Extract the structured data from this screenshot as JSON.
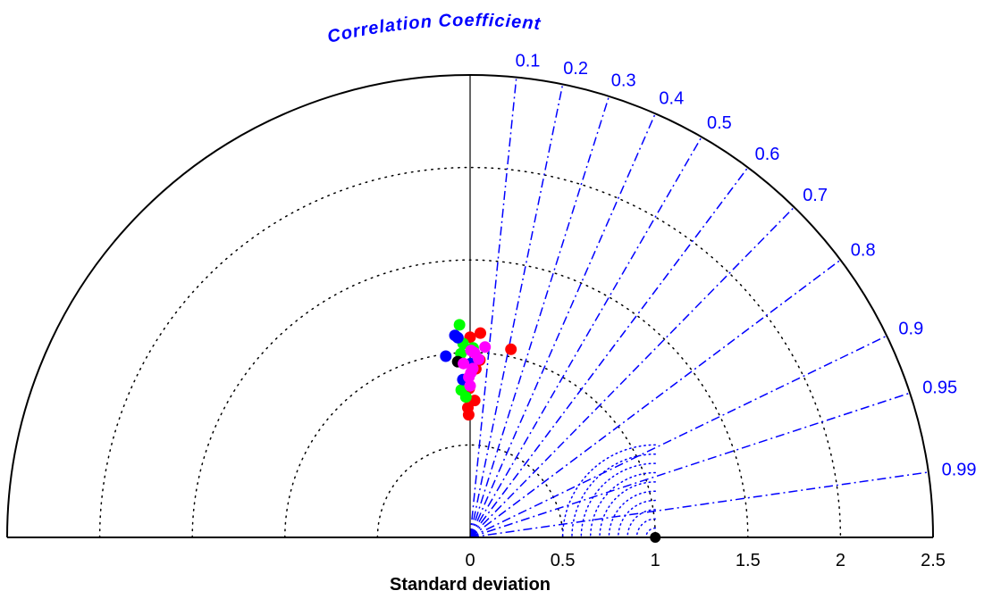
{
  "chart_data": {
    "type": "taylor-diagram",
    "title": "Correlation Coefficient",
    "xlabel": "Standard deviation",
    "std_range": [
      0,
      2.5
    ],
    "std_ticks": [
      {
        "value": 0,
        "label": "0"
      },
      {
        "value": 0.5,
        "label": "0.5"
      },
      {
        "value": 1,
        "label": "1"
      },
      {
        "value": 1.5,
        "label": "1.5"
      },
      {
        "value": 2,
        "label": "2"
      },
      {
        "value": 2.5,
        "label": "2.5"
      }
    ],
    "std_arcs": [
      0.5,
      1,
      1.5,
      2
    ],
    "correlation_ticks": [
      {
        "value": 0.1,
        "label": "0.1"
      },
      {
        "value": 0.2,
        "label": "0.2"
      },
      {
        "value": 0.3,
        "label": "0.3"
      },
      {
        "value": 0.4,
        "label": "0.4"
      },
      {
        "value": 0.5,
        "label": "0.5"
      },
      {
        "value": 0.6,
        "label": "0.6"
      },
      {
        "value": 0.7,
        "label": "0.7"
      },
      {
        "value": 0.8,
        "label": "0.8"
      },
      {
        "value": 0.9,
        "label": "0.9"
      },
      {
        "value": 0.95,
        "label": "0.95"
      },
      {
        "value": 0.99,
        "label": "0.99"
      }
    ],
    "rms_arcs": [
      0.05,
      0.1,
      0.15,
      0.2,
      0.25,
      0.3,
      0.35,
      0.4,
      0.45,
      0.5
    ],
    "reference": {
      "std": 1,
      "corr": 1,
      "color": "#000000"
    },
    "points": [
      {
        "std": 1.0825,
        "corr": 0.0,
        "color": "#ff0000"
      },
      {
        "std": 1.106,
        "corr": 0.05,
        "color": "#ff0000"
      },
      {
        "std": 0.9115,
        "corr": 0.034,
        "color": "#ff0000"
      },
      {
        "std": 0.8055,
        "corr": -0.006,
        "color": "#ff0000"
      },
      {
        "std": 0.7406,
        "corr": 0.033,
        "color": "#ff0000"
      },
      {
        "std": 0.7014,
        "corr": -0.017,
        "color": "#ff0000"
      },
      {
        "std": 1.0405,
        "corr": 0.212,
        "color": "#ff0000"
      },
      {
        "std": 0.6633,
        "corr": -0.012,
        "color": "#ff0000"
      },
      {
        "std": 0.9601,
        "corr": 0.055,
        "color": "#ff0000"
      },
      {
        "std": 1.1505,
        "corr": -0.05,
        "color": "#00ff00"
      },
      {
        "std": 0.9944,
        "corr": -0.05,
        "color": "#00ff00"
      },
      {
        "std": 0.7595,
        "corr": -0.03,
        "color": "#00ff00"
      },
      {
        "std": 0.7981,
        "corr": -0.06,
        "color": "#00ff00"
      },
      {
        "std": 1.0483,
        "corr": -0.036,
        "color": "#00ff00"
      },
      {
        "std": 1.0244,
        "corr": 0.016,
        "color": "#00ff00"
      },
      {
        "std": 0.8543,
        "corr": -0.017,
        "color": "#00ff00"
      },
      {
        "std": 1.0816,
        "corr": -0.061,
        "color": "#0000ff"
      },
      {
        "std": 1.0953,
        "corr": -0.075,
        "color": "#0000ff"
      },
      {
        "std": 0.9885,
        "corr": -0.133,
        "color": "#0000ff"
      },
      {
        "std": 0.9394,
        "corr": 0.002,
        "color": "#0000ff"
      },
      {
        "std": 0.8542,
        "corr": -0.046,
        "color": "#0000ff"
      },
      {
        "std": 0.9526,
        "corr": -0.07,
        "color": "#000000"
      },
      {
        "std": 0.9989,
        "corr": 0.023,
        "color": "#ff00ff"
      },
      {
        "std": 0.965,
        "corr": 0.048,
        "color": "#ff00ff"
      },
      {
        "std": 0.941,
        "corr": -0.038,
        "color": "#ff00ff"
      },
      {
        "std": 0.913,
        "corr": 0.016,
        "color": "#ff00ff"
      },
      {
        "std": 0.8662,
        "corr": -0.008,
        "color": "#ff00ff"
      },
      {
        "std": 0.8195,
        "corr": 0.0,
        "color": "#ff00ff"
      },
      {
        "std": 1.0327,
        "corr": 0.078,
        "color": "#ff00ff"
      },
      {
        "std": 0.8901,
        "corr": 0.005,
        "color": "#ff00ff"
      },
      {
        "std": 1.0107,
        "corr": 0.005,
        "color": "#ff00ff"
      }
    ],
    "colors": {
      "correlation": "#0000ff",
      "rms": "#0000ff",
      "std_arcs": "#000000",
      "frame": "#000000"
    }
  }
}
